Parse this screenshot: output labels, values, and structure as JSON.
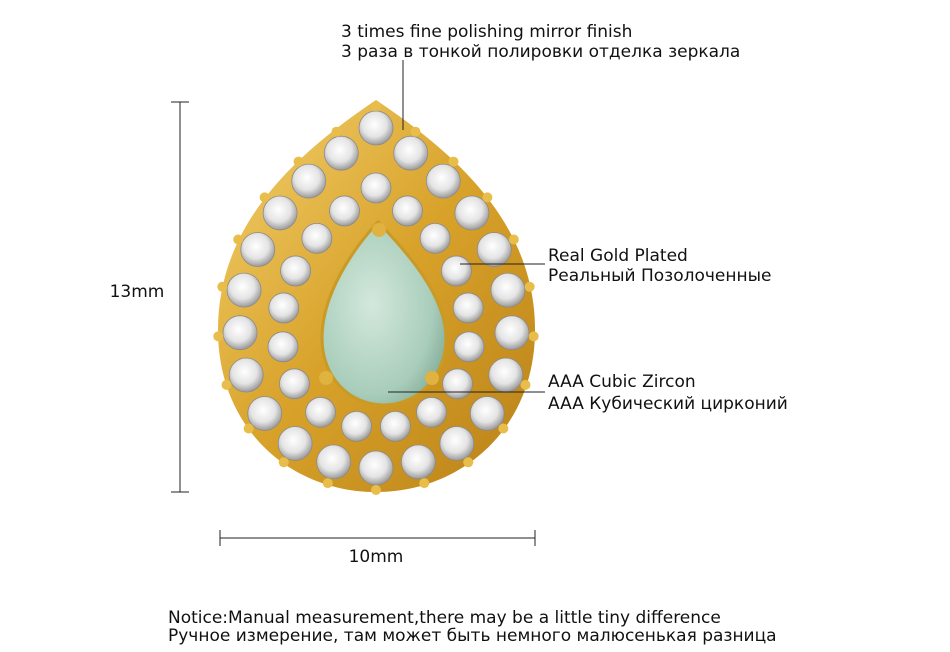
{
  "annotations": [
    {
      "en": "3 times fine polishing mirror finish",
      "ru": "3 раза в тонкой полировки отделка зеркала"
    },
    {
      "en": "Real Gold Plated",
      "ru": "Реальный Позолоченные"
    },
    {
      "en": "AAA Cubic Zircon",
      "ru": "AAA Кубический цирконий"
    }
  ],
  "dimensions": {
    "height": "13mm",
    "width": "10mm"
  },
  "notice": {
    "en": "Notice:Manual measurement,there may be a little tiny difference",
    "ru": "Ручное измерение, там может быть немного малюсенькая разница"
  }
}
